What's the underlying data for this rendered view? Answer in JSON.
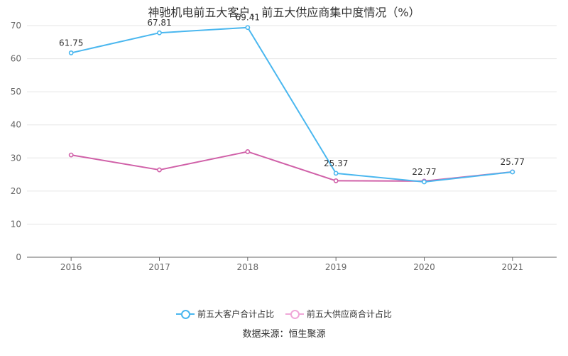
{
  "title": "神驰机电前五大客户、前五大供应商集中度情况（%）",
  "source": "数据来源：恒生聚源",
  "chart_data": {
    "type": "line",
    "categories": [
      "2016",
      "2017",
      "2018",
      "2019",
      "2020",
      "2021"
    ],
    "ylim": [
      0,
      70
    ],
    "yticks": [
      0,
      10,
      20,
      30,
      40,
      50,
      60,
      70
    ],
    "grid": true,
    "legend_position": "bottom",
    "series": [
      {
        "name": "前五大客户合计占比",
        "color": "#4ab7ef",
        "values": [
          61.75,
          67.81,
          69.41,
          25.37,
          22.77,
          25.77
        ],
        "labels": [
          "61.75",
          "67.81",
          "69.41",
          "25.37",
          "22.77",
          "25.77"
        ]
      },
      {
        "name": "前五大供应商合计占比",
        "color": "#d060a8",
        "values": [
          30.9,
          26.4,
          31.9,
          23.1,
          23.0,
          25.8
        ]
      }
    ]
  }
}
